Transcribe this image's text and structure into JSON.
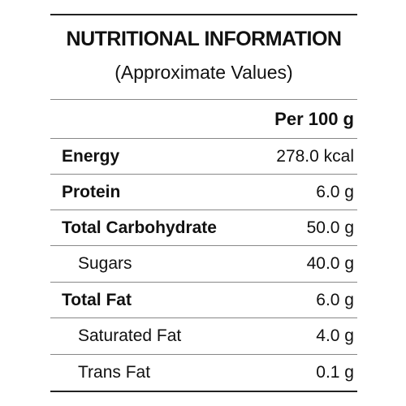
{
  "header": {
    "title": "NUTRITIONAL INFORMATION",
    "subtitle": "(Approximate Values)"
  },
  "table": {
    "column_header": "Per 100 g",
    "rows": [
      {
        "label": "Energy",
        "value": "278.0 kcal"
      },
      {
        "label": "Protein",
        "value": "6.0 g"
      },
      {
        "label": "Total Carbohydrate",
        "value": "50.0 g"
      },
      {
        "label": "Sugars",
        "value": "40.0 g"
      },
      {
        "label": "Total Fat",
        "value": "6.0 g"
      },
      {
        "label": "Saturated Fat",
        "value": "4.0 g"
      },
      {
        "label": "Trans Fat",
        "value": "0.1 g"
      }
    ]
  }
}
